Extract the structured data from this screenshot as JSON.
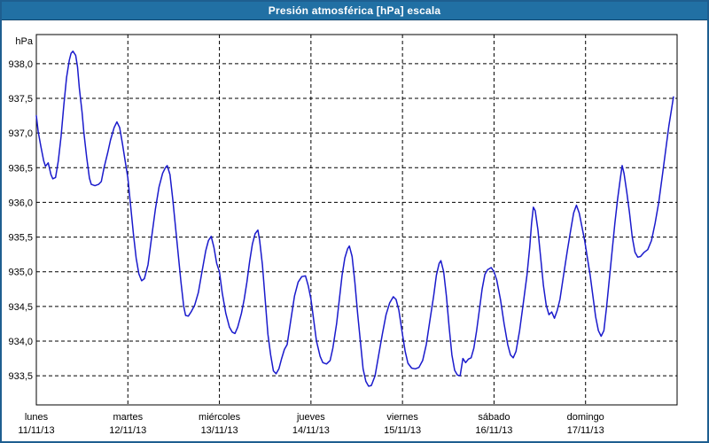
{
  "window": {
    "title": "Presión atmosférica [hPa] escala",
    "titlebar_color": "#2170a4",
    "frame_border_color": "#1e5e90"
  },
  "chart_data": {
    "type": "line",
    "title": "Presión atmosférica [hPa] escala",
    "ylabel": "hPa",
    "xlabel": "",
    "unit_label": "hPa",
    "grid": "dashed-black",
    "legend": "none",
    "line_color": "#1a1acc",
    "axis_color": "#000000",
    "ylim": [
      933.08,
      938.42
    ],
    "ytick_values": [
      938.0,
      937.5,
      937.0,
      936.5,
      936.0,
      935.5,
      935.0,
      934.5,
      934.0,
      933.5
    ],
    "ytick_labels": [
      "938,0",
      "937,5",
      "937,0",
      "936,5",
      "936,0",
      "935,5",
      "935,0",
      "934,5",
      "934,0",
      "933,5"
    ],
    "xlim_days": [
      0,
      7
    ],
    "x_days": [
      {
        "name": "lunes",
        "date": "11/11/13"
      },
      {
        "name": "martes",
        "date": "12/11/13"
      },
      {
        "name": "miércoles",
        "date": "13/11/13"
      },
      {
        "name": "jueves",
        "date": "14/11/13"
      },
      {
        "name": "viernes",
        "date": "15/11/13"
      },
      {
        "name": "sábado",
        "date": "16/11/13"
      },
      {
        "name": "domingo",
        "date": "17/11/13"
      }
    ],
    "series": [
      {
        "name": "Presión atmosférica",
        "points": [
          [
            0.0,
            937.25
          ],
          [
            0.02,
            937.02
          ],
          [
            0.05,
            936.8
          ],
          [
            0.08,
            936.6
          ],
          [
            0.1,
            936.52
          ],
          [
            0.13,
            936.57
          ],
          [
            0.16,
            936.4
          ],
          [
            0.18,
            936.34
          ],
          [
            0.21,
            936.36
          ],
          [
            0.24,
            936.6
          ],
          [
            0.27,
            936.95
          ],
          [
            0.3,
            937.4
          ],
          [
            0.33,
            937.8
          ],
          [
            0.36,
            938.05
          ],
          [
            0.38,
            938.15
          ],
          [
            0.4,
            938.18
          ],
          [
            0.43,
            938.12
          ],
          [
            0.45,
            937.95
          ],
          [
            0.47,
            937.65
          ],
          [
            0.5,
            937.3
          ],
          [
            0.52,
            937.0
          ],
          [
            0.55,
            936.65
          ],
          [
            0.58,
            936.35
          ],
          [
            0.6,
            936.26
          ],
          [
            0.64,
            936.24
          ],
          [
            0.68,
            936.26
          ],
          [
            0.71,
            936.3
          ],
          [
            0.74,
            936.5
          ],
          [
            0.78,
            936.72
          ],
          [
            0.81,
            936.9
          ],
          [
            0.85,
            937.08
          ],
          [
            0.88,
            937.16
          ],
          [
            0.91,
            937.08
          ],
          [
            0.94,
            936.85
          ],
          [
            0.97,
            936.6
          ],
          [
            1.0,
            936.35
          ],
          [
            1.03,
            935.95
          ],
          [
            1.06,
            935.55
          ],
          [
            1.09,
            935.2
          ],
          [
            1.12,
            934.97
          ],
          [
            1.15,
            934.87
          ],
          [
            1.18,
            934.9
          ],
          [
            1.22,
            935.1
          ],
          [
            1.26,
            935.5
          ],
          [
            1.3,
            935.9
          ],
          [
            1.34,
            936.22
          ],
          [
            1.38,
            936.42
          ],
          [
            1.41,
            936.5
          ],
          [
            1.43,
            936.53
          ],
          [
            1.46,
            936.4
          ],
          [
            1.49,
            936.05
          ],
          [
            1.52,
            935.65
          ],
          [
            1.55,
            935.25
          ],
          [
            1.58,
            934.85
          ],
          [
            1.61,
            934.5
          ],
          [
            1.63,
            934.37
          ],
          [
            1.66,
            934.36
          ],
          [
            1.69,
            934.42
          ],
          [
            1.73,
            934.52
          ],
          [
            1.77,
            934.7
          ],
          [
            1.81,
            935.0
          ],
          [
            1.85,
            935.3
          ],
          [
            1.88,
            935.45
          ],
          [
            1.91,
            935.51
          ],
          [
            1.94,
            935.35
          ],
          [
            1.97,
            935.12
          ],
          [
            2.0,
            935.0
          ],
          [
            2.03,
            934.7
          ],
          [
            2.07,
            934.4
          ],
          [
            2.11,
            934.2
          ],
          [
            2.14,
            934.13
          ],
          [
            2.17,
            934.11
          ],
          [
            2.2,
            934.2
          ],
          [
            2.24,
            934.4
          ],
          [
            2.27,
            934.6
          ],
          [
            2.3,
            934.85
          ],
          [
            2.33,
            935.15
          ],
          [
            2.36,
            935.4
          ],
          [
            2.39,
            935.55
          ],
          [
            2.42,
            935.6
          ],
          [
            2.44,
            935.45
          ],
          [
            2.47,
            935.1
          ],
          [
            2.5,
            934.6
          ],
          [
            2.53,
            934.1
          ],
          [
            2.56,
            933.8
          ],
          [
            2.59,
            933.57
          ],
          [
            2.62,
            933.53
          ],
          [
            2.65,
            933.6
          ],
          [
            2.68,
            933.75
          ],
          [
            2.71,
            933.88
          ],
          [
            2.74,
            933.95
          ],
          [
            2.78,
            934.3
          ],
          [
            2.82,
            934.65
          ],
          [
            2.86,
            934.85
          ],
          [
            2.9,
            934.93
          ],
          [
            2.94,
            934.94
          ],
          [
            2.97,
            934.8
          ],
          [
            3.0,
            934.6
          ],
          [
            3.03,
            934.3
          ],
          [
            3.06,
            934.0
          ],
          [
            3.1,
            933.78
          ],
          [
            3.13,
            933.69
          ],
          [
            3.17,
            933.67
          ],
          [
            3.21,
            933.72
          ],
          [
            3.24,
            933.9
          ],
          [
            3.28,
            934.25
          ],
          [
            3.31,
            934.6
          ],
          [
            3.34,
            934.95
          ],
          [
            3.37,
            935.2
          ],
          [
            3.4,
            935.33
          ],
          [
            3.42,
            935.37
          ],
          [
            3.45,
            935.22
          ],
          [
            3.48,
            934.85
          ],
          [
            3.51,
            934.4
          ],
          [
            3.54,
            934.0
          ],
          [
            3.57,
            933.6
          ],
          [
            3.6,
            933.42
          ],
          [
            3.63,
            933.35
          ],
          [
            3.66,
            933.36
          ],
          [
            3.7,
            933.5
          ],
          [
            3.74,
            933.8
          ],
          [
            3.78,
            934.1
          ],
          [
            3.82,
            934.38
          ],
          [
            3.86,
            934.55
          ],
          [
            3.9,
            934.64
          ],
          [
            3.93,
            934.6
          ],
          [
            3.96,
            934.45
          ],
          [
            4.0,
            934.1
          ],
          [
            4.03,
            933.85
          ],
          [
            4.06,
            933.68
          ],
          [
            4.1,
            933.61
          ],
          [
            4.14,
            933.6
          ],
          [
            4.18,
            933.62
          ],
          [
            4.22,
            933.72
          ],
          [
            4.26,
            933.95
          ],
          [
            4.3,
            934.3
          ],
          [
            4.34,
            934.65
          ],
          [
            4.37,
            934.95
          ],
          [
            4.4,
            935.12
          ],
          [
            4.42,
            935.16
          ],
          [
            4.45,
            935.0
          ],
          [
            4.48,
            934.65
          ],
          [
            4.51,
            934.2
          ],
          [
            4.54,
            933.8
          ],
          [
            4.57,
            933.58
          ],
          [
            4.6,
            933.51
          ],
          [
            4.63,
            933.5
          ],
          [
            4.66,
            933.75
          ],
          [
            4.69,
            933.69
          ],
          [
            4.72,
            933.74
          ],
          [
            4.75,
            933.76
          ],
          [
            4.78,
            933.9
          ],
          [
            4.81,
            934.15
          ],
          [
            4.84,
            934.45
          ],
          [
            4.87,
            934.75
          ],
          [
            4.9,
            934.96
          ],
          [
            4.93,
            935.03
          ],
          [
            4.97,
            935.06
          ],
          [
            5.0,
            935.0
          ],
          [
            5.03,
            934.88
          ],
          [
            5.07,
            934.6
          ],
          [
            5.11,
            934.25
          ],
          [
            5.15,
            933.95
          ],
          [
            5.18,
            933.8
          ],
          [
            5.21,
            933.76
          ],
          [
            5.24,
            933.85
          ],
          [
            5.28,
            934.15
          ],
          [
            5.32,
            934.55
          ],
          [
            5.36,
            934.95
          ],
          [
            5.39,
            935.35
          ],
          [
            5.41,
            935.7
          ],
          [
            5.43,
            935.93
          ],
          [
            5.45,
            935.88
          ],
          [
            5.48,
            935.6
          ],
          [
            5.51,
            935.2
          ],
          [
            5.54,
            934.8
          ],
          [
            5.57,
            934.52
          ],
          [
            5.6,
            934.38
          ],
          [
            5.63,
            934.42
          ],
          [
            5.66,
            934.33
          ],
          [
            5.69,
            934.44
          ],
          [
            5.72,
            934.6
          ],
          [
            5.76,
            934.95
          ],
          [
            5.8,
            935.3
          ],
          [
            5.84,
            935.62
          ],
          [
            5.87,
            935.85
          ],
          [
            5.9,
            935.96
          ],
          [
            5.93,
            935.85
          ],
          [
            5.96,
            935.65
          ],
          [
            5.99,
            935.45
          ],
          [
            6.02,
            935.2
          ],
          [
            6.05,
            934.95
          ],
          [
            6.08,
            934.65
          ],
          [
            6.11,
            934.35
          ],
          [
            6.14,
            934.15
          ],
          [
            6.17,
            934.07
          ],
          [
            6.2,
            934.15
          ],
          [
            6.23,
            934.5
          ],
          [
            6.26,
            934.9
          ],
          [
            6.29,
            935.3
          ],
          [
            6.32,
            935.7
          ],
          [
            6.35,
            936.05
          ],
          [
            6.38,
            936.35
          ],
          [
            6.4,
            936.53
          ],
          [
            6.42,
            936.42
          ],
          [
            6.45,
            936.15
          ],
          [
            6.48,
            935.85
          ],
          [
            6.51,
            935.5
          ],
          [
            6.54,
            935.28
          ],
          [
            6.57,
            935.21
          ],
          [
            6.6,
            935.22
          ],
          [
            6.64,
            935.28
          ],
          [
            6.68,
            935.32
          ],
          [
            6.72,
            935.45
          ],
          [
            6.76,
            935.7
          ],
          [
            6.8,
            936.0
          ],
          [
            6.84,
            936.4
          ],
          [
            6.88,
            936.8
          ],
          [
            6.91,
            937.1
          ],
          [
            6.94,
            937.35
          ],
          [
            6.96,
            937.52
          ]
        ]
      }
    ]
  }
}
